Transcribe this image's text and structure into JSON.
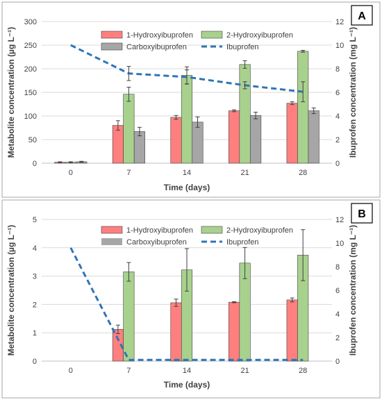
{
  "chart_data": [
    {
      "type": "bar",
      "panel_label": "A",
      "categories": [
        "0",
        "7",
        "14",
        "21",
        "28"
      ],
      "xlabel": "Time (days)",
      "ylabel": "Metabolite concentration (µg L⁻¹)",
      "y2label": "Ibuprofen concentration (mg L⁻¹)",
      "ylim": [
        0,
        300
      ],
      "yticks": [
        "0",
        "50",
        "100",
        "150",
        "200",
        "250",
        "300"
      ],
      "y2lim": [
        0,
        12
      ],
      "y2ticks": [
        "0",
        "2",
        "4",
        "6",
        "8",
        "10",
        "12"
      ],
      "grid": true,
      "legend_position": "top",
      "series": [
        {
          "name": "1-Hydroxyibuprofen",
          "kind": "bar",
          "axis": "left",
          "color": "#FF7F7F",
          "values": [
            2,
            80,
            97,
            111,
            127
          ],
          "errors": [
            1,
            10,
            4,
            2,
            3
          ]
        },
        {
          "name": "2-Hydroxyibuprofen",
          "kind": "bar",
          "axis": "left",
          "color": "#A9D18E",
          "values": [
            2,
            146,
            186,
            209,
            237
          ],
          "errors": [
            1,
            15,
            18,
            8,
            2
          ]
        },
        {
          "name": "Carboxyibuprofen",
          "kind": "bar",
          "axis": "left",
          "color": "#A6A6A6",
          "values": [
            3,
            67,
            87,
            101,
            111
          ],
          "errors": [
            1,
            9,
            11,
            7,
            6
          ]
        },
        {
          "name": "Ibuprofen",
          "kind": "line",
          "axis": "right",
          "color": "#2E75B6",
          "values": [
            10,
            7.6,
            7.3,
            6.6,
            6.05
          ],
          "errors": [
            0,
            0.6,
            0.6,
            0.3,
            0.85
          ]
        }
      ]
    },
    {
      "type": "bar",
      "panel_label": "B",
      "categories": [
        "0",
        "7",
        "14",
        "21",
        "28"
      ],
      "xlabel": "Time (days)",
      "ylabel": "Metabolite concentration (µg L⁻¹)",
      "y2label": "Ibuprofen concentration (mg L⁻¹)",
      "ylim": [
        0,
        5
      ],
      "yticks": [
        "0",
        "1",
        "2",
        "3",
        "4",
        "5"
      ],
      "y2lim": [
        0,
        12
      ],
      "y2ticks": [
        "0",
        "2",
        "4",
        "6",
        "8",
        "10",
        "12"
      ],
      "grid": true,
      "legend_position": "top",
      "series": [
        {
          "name": "1-Hydroxyibuprofen",
          "kind": "bar",
          "axis": "left",
          "color": "#FF7F7F",
          "values": [
            0,
            1.12,
            2.06,
            2.08,
            2.16
          ],
          "errors": [
            0,
            0.15,
            0.13,
            0.02,
            0.07
          ]
        },
        {
          "name": "2-Hydroxyibuprofen",
          "kind": "bar",
          "axis": "left",
          "color": "#A9D18E",
          "values": [
            0,
            3.15,
            3.22,
            3.46,
            3.74
          ],
          "errors": [
            0,
            0.33,
            0.75,
            0.55,
            0.9
          ]
        },
        {
          "name": "Carboxyibuprofen",
          "kind": "bar",
          "axis": "left",
          "color": "#A6A6A6",
          "values": [
            0,
            0,
            0,
            0,
            0
          ],
          "errors": [
            0,
            0,
            0,
            0,
            0
          ]
        },
        {
          "name": "Ibuprofen",
          "kind": "line",
          "axis": "right",
          "color": "#2E75B6",
          "values": [
            9.6,
            0.1,
            0.1,
            0.1,
            0.1
          ],
          "errors": [
            0,
            0,
            0,
            0,
            0
          ]
        }
      ]
    }
  ]
}
